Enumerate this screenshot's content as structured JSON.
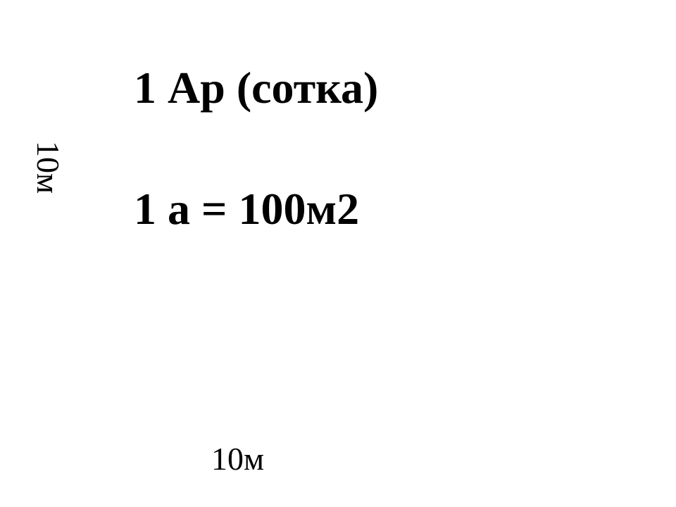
{
  "diagram": {
    "type": "infographic",
    "background_color": "#ffffff",
    "text_color": "#000000",
    "title": "1 Ар (сотка)",
    "title_fontsize": 64,
    "title_fontweight": 700,
    "formula": "1 а = 100м2",
    "formula_fontsize": 64,
    "formula_fontweight": 700,
    "side_label": "10м",
    "side_label_fontsize": 46,
    "side_label_rotation_deg": 90,
    "bottom_label": "10м",
    "bottom_label_fontsize": 46,
    "font_family": "Times New Roman"
  }
}
